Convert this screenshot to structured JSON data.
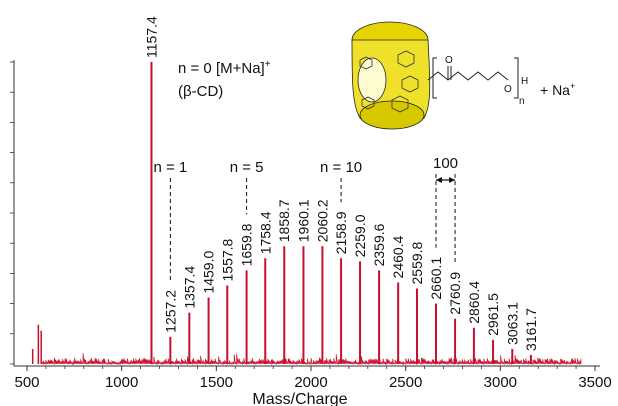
{
  "chart_data": {
    "type": "line",
    "title": "",
    "xlabel": "Mass/Charge",
    "ylabel": "",
    "xlim": [
      500,
      3500
    ],
    "ylim": [
      0,
      100
    ],
    "x_ticks": [
      "500",
      "1000",
      "1500",
      "2000",
      "2500",
      "3000",
      "3500"
    ],
    "x_tick_values": [
      500,
      1000,
      1500,
      2000,
      2500,
      3000,
      3500
    ],
    "grid": false,
    "line_color": "#c8102e",
    "peaks": [
      {
        "x": 1157.4,
        "label": "1157.4",
        "y": 100
      },
      {
        "x": 1257.2,
        "label": "1257.2",
        "y": 9
      },
      {
        "x": 1357.4,
        "label": "1357.4",
        "y": 17
      },
      {
        "x": 1459.0,
        "label": "1459.0",
        "y": 22
      },
      {
        "x": 1557.8,
        "label": "1557.8",
        "y": 26
      },
      {
        "x": 1659.8,
        "label": "1659.8",
        "y": 31
      },
      {
        "x": 1758.4,
        "label": "1758.4",
        "y": 35
      },
      {
        "x": 1858.7,
        "label": "1858.7",
        "y": 39
      },
      {
        "x": 1960.1,
        "label": "1960.1",
        "y": 39
      },
      {
        "x": 2060.2,
        "label": "2060.2",
        "y": 39
      },
      {
        "x": 2158.9,
        "label": "2158.9",
        "y": 35
      },
      {
        "x": 2259.0,
        "label": "2259.0",
        "y": 34
      },
      {
        "x": 2359.6,
        "label": "2359.6",
        "y": 31
      },
      {
        "x": 2460.4,
        "label": "2460.4",
        "y": 27
      },
      {
        "x": 2559.8,
        "label": "2559.8",
        "y": 25
      },
      {
        "x": 2660.1,
        "label": "2660.1",
        "y": 20
      },
      {
        "x": 2760.9,
        "label": "2760.9",
        "y": 15
      },
      {
        "x": 2860.4,
        "label": "2860.4",
        "y": 12
      },
      {
        "x": 2961.5,
        "label": "2961.5",
        "y": 8
      },
      {
        "x": 3063.1,
        "label": "3063.1",
        "y": 5
      },
      {
        "x": 3161.7,
        "label": "3161.7",
        "y": 3
      }
    ],
    "small_peaks": [
      {
        "x": 530,
        "y": 5
      },
      {
        "x": 560,
        "y": 13
      },
      {
        "x": 575,
        "y": 11
      }
    ],
    "annotations": [
      {
        "id": "n0",
        "text": "n = 0 [M+Na]",
        "sup": "+"
      },
      {
        "id": "bcd",
        "text": "(β-CD)"
      },
      {
        "id": "n1",
        "text": "n = 1",
        "x": 1257.2
      },
      {
        "id": "n5",
        "text": "n = 5",
        "x": 1659.8
      },
      {
        "id": "n10",
        "text": "n = 10",
        "x": 2158.9
      },
      {
        "id": "d100",
        "text": "100",
        "x_start": 2660.1,
        "x_end": 2760.9
      }
    ],
    "structure_labels": {
      "carbonyl": "O",
      "ester_o": "O",
      "h": "H",
      "n": "n",
      "sodium": "+ Na",
      "sodium_sup": "+"
    }
  }
}
